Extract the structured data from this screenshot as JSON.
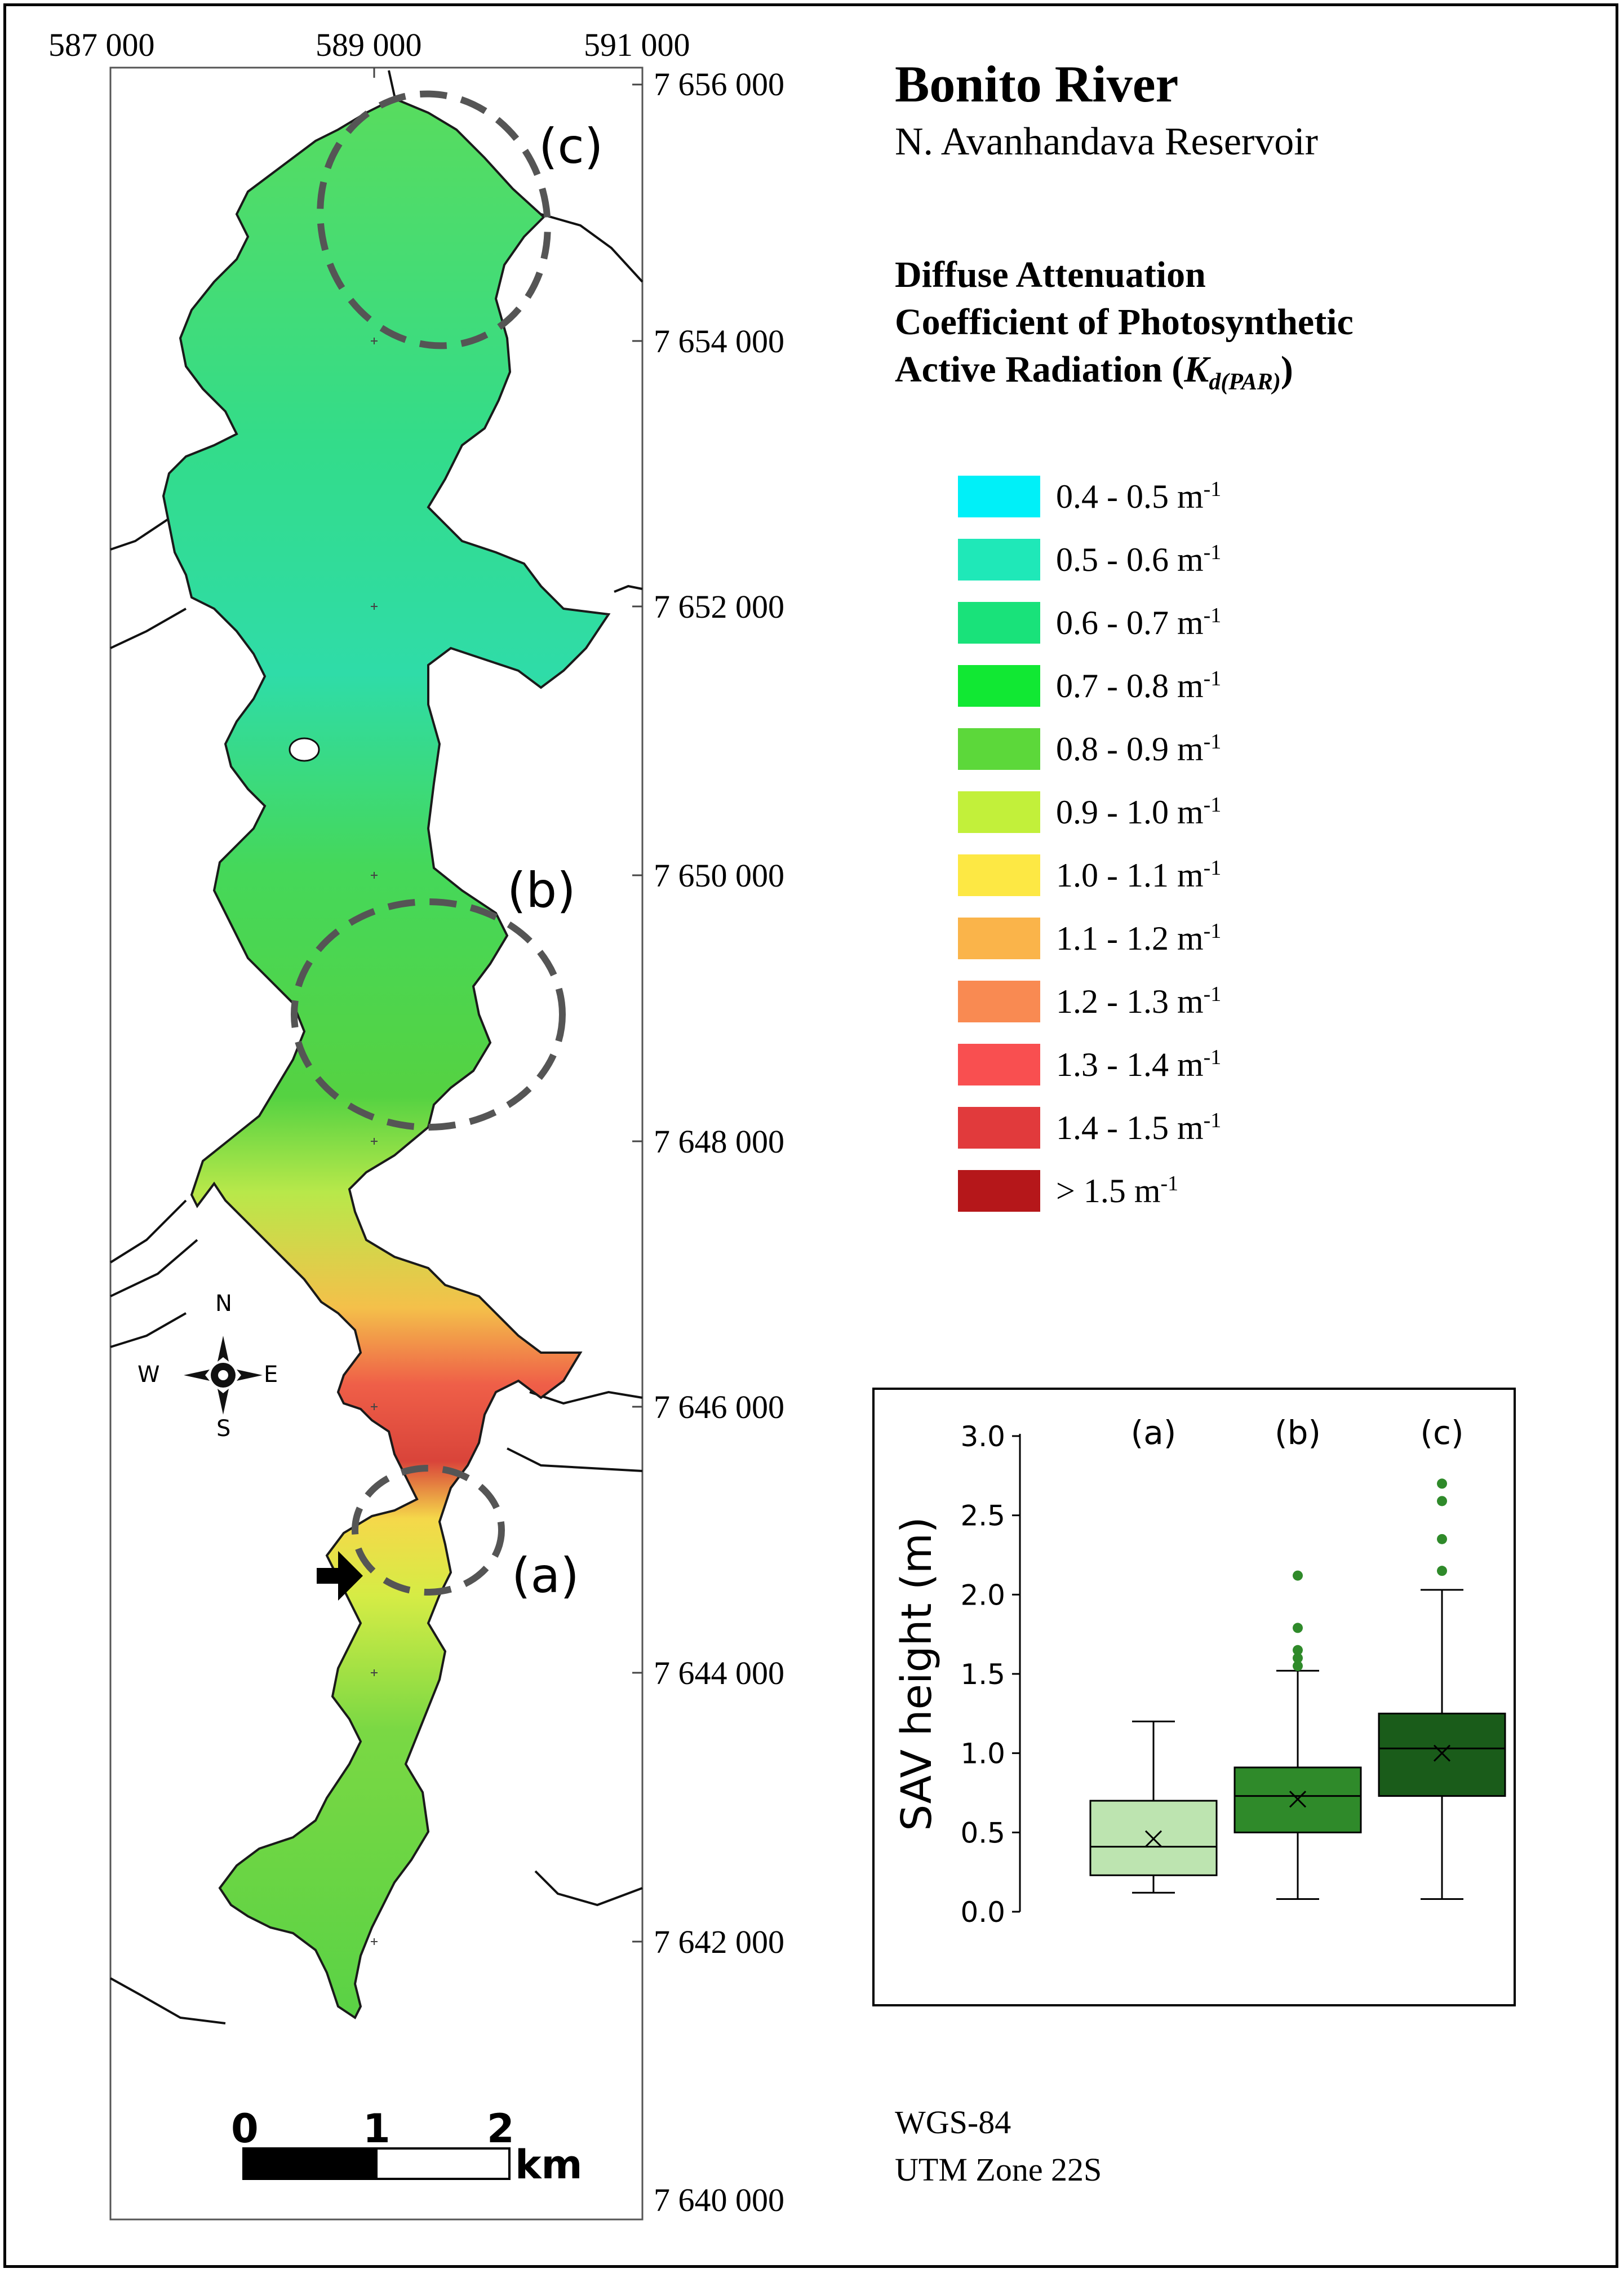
{
  "title": "Bonito River",
  "subtitle": "N. Avanhandava Reservoir",
  "legend": {
    "title_lines": [
      "Diffuse Attenuation",
      "Coefficient of Photosynthetic",
      "Active Radiation ("
    ],
    "title_symbol": "K",
    "title_subscript": "d(PAR)",
    "title_close": ")",
    "unit_exponent": "-1",
    "items": [
      {
        "label": "0.4 - 0.5 m",
        "color": "#00f0f8"
      },
      {
        "label": "0.5 - 0.6 m",
        "color": "#1fe8b8"
      },
      {
        "label": "0.6 - 0.7 m",
        "color": "#19e27a"
      },
      {
        "label": "0.7 - 0.8 m",
        "color": "#11e833"
      },
      {
        "label": "0.8 - 0.9 m",
        "color": "#5cd83a"
      },
      {
        "label": "0.9 - 1.0 m",
        "color": "#c2f03a"
      },
      {
        "label": "1.0 - 1.1 m",
        "color": "#fde844"
      },
      {
        "label": "1.1 - 1.2 m",
        "color": "#fab44a"
      },
      {
        "label": "1.2 - 1.3 m",
        "color": "#f98a52"
      },
      {
        "label": "1.3 - 1.4 m",
        "color": "#f94f50"
      },
      {
        "label": "1.4 - 1.5 m",
        "color": "#e13a3c"
      },
      {
        "label": "> 1.5 m",
        "color": "#b5171a"
      }
    ]
  },
  "axes": {
    "easting": [
      "587 000",
      "589 000",
      "591 000"
    ],
    "northing": [
      "7 656 000",
      "7 654 000",
      "7 652 000",
      "7 650 000",
      "7 648 000",
      "7 646 000",
      "7 644 000",
      "7 642 000",
      "7 640 000"
    ]
  },
  "site_labels": [
    "(a)",
    "(b)",
    "(c)"
  ],
  "compass": {
    "n": "N",
    "s": "S",
    "e": "E",
    "w": "W"
  },
  "scale_bar": {
    "ticks": [
      "0",
      "1",
      "2"
    ],
    "unit": "km"
  },
  "datum": {
    "line1": "WGS-84",
    "line2": "UTM Zone 22S"
  },
  "chart_data": {
    "type": "box",
    "ylabel": "SAV height (m)",
    "ylim": [
      0.0,
      3.0
    ],
    "yticks": [
      0.0,
      0.5,
      1.0,
      1.5,
      2.0,
      2.5,
      3.0
    ],
    "ytick_labels": [
      "0.0",
      "0.5",
      "1.0",
      "1.5",
      "2.0",
      "2.5",
      "3.0"
    ],
    "categories": [
      "(a)",
      "(b)",
      "(c)"
    ],
    "colors": [
      "#bde4b0",
      "#2f8a2a",
      "#1a5c1a"
    ],
    "series": [
      {
        "name": "(a)",
        "min": 0.12,
        "q1": 0.23,
        "median": 0.41,
        "q3": 0.7,
        "max": 1.2,
        "mean": 0.46,
        "outliers": []
      },
      {
        "name": "(b)",
        "min": 0.08,
        "q1": 0.5,
        "median": 0.73,
        "q3": 0.91,
        "max": 1.52,
        "mean": 0.71,
        "outliers": [
          1.55,
          1.6,
          1.65,
          1.79,
          2.12
        ]
      },
      {
        "name": "(c)",
        "min": 0.08,
        "q1": 0.73,
        "median": 1.03,
        "q3": 1.25,
        "max": 2.03,
        "mean": 1.0,
        "outliers": [
          2.15,
          2.35,
          2.59,
          2.7
        ]
      }
    ]
  }
}
